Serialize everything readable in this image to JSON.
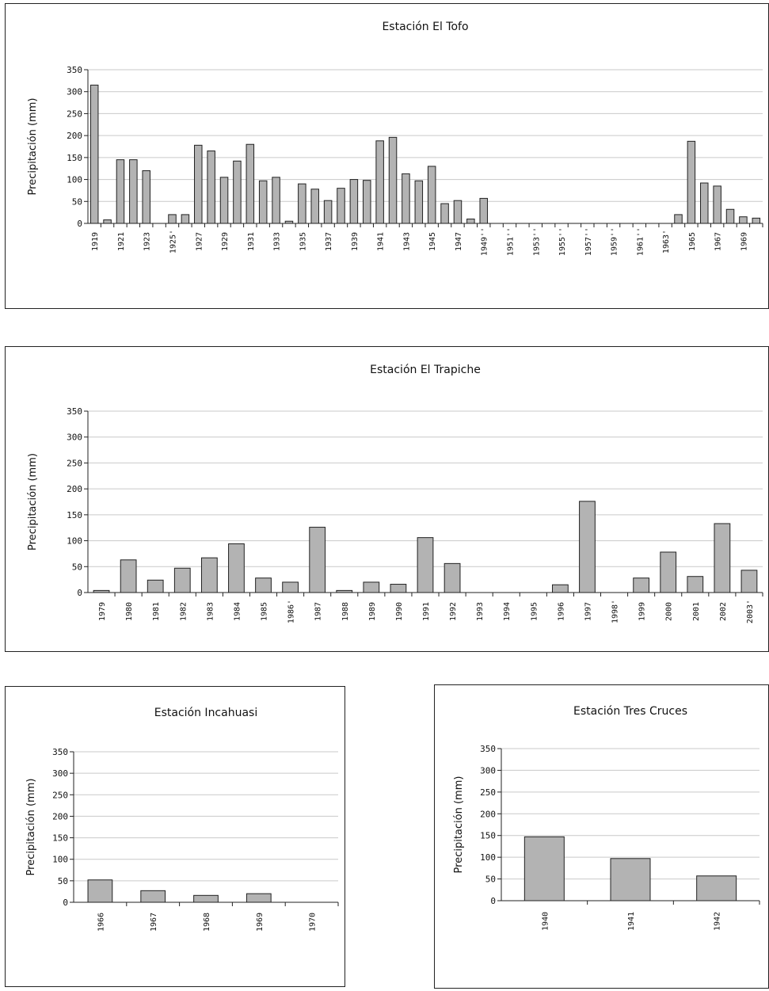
{
  "chart_data": [
    {
      "type": "bar",
      "title": "Estación El Tofo",
      "ylabel": "Precipitación (mm)",
      "ylim": [
        0,
        350
      ],
      "yticks": [
        0,
        50,
        100,
        150,
        200,
        250,
        300,
        350
      ],
      "grid": true,
      "categories": [
        "1919",
        "1920",
        "1921",
        "1922",
        "1923",
        "1924",
        "1925'",
        "1926",
        "1927",
        "1928",
        "1929",
        "1930",
        "1931",
        "1932",
        "1933",
        "1934",
        "1935",
        "1936",
        "1937",
        "1938",
        "1939",
        "1940",
        "1941",
        "1942",
        "1943",
        "1944",
        "1945",
        "1946",
        "1947",
        "1948",
        "1949''",
        "1950",
        "1951''",
        "1952",
        "1953''",
        "1954",
        "1955''",
        "1956",
        "1957''",
        "1958",
        "1959''",
        "1960",
        "1961''",
        "1962",
        "1963'",
        "1964",
        "1965",
        "1966",
        "1967",
        "1968",
        "1969",
        "1970"
      ],
      "tick_labels": [
        "1919",
        "",
        "1921",
        "",
        "1923",
        "",
        "1925'",
        "",
        "1927",
        "",
        "1929",
        "",
        "1931",
        "",
        "1933",
        "",
        "1935",
        "",
        "1937",
        "",
        "1939",
        "",
        "1941",
        "",
        "1943",
        "",
        "1945",
        "",
        "1947",
        "",
        "1949''",
        "",
        "1951''",
        "",
        "1953''",
        "",
        "1955''",
        "",
        "1957''",
        "",
        "1959''",
        "",
        "1961''",
        "",
        "1963'",
        "",
        "1965",
        "",
        "1967",
        "",
        "1969",
        ""
      ],
      "values": [
        315,
        8,
        145,
        145,
        120,
        0,
        20,
        20,
        178,
        165,
        105,
        142,
        180,
        97,
        105,
        5,
        90,
        78,
        52,
        80,
        100,
        98,
        188,
        196,
        113,
        97,
        130,
        45,
        52,
        10,
        57,
        0,
        0,
        0,
        0,
        0,
        0,
        0,
        0,
        0,
        0,
        0,
        0,
        0,
        0,
        20,
        187,
        92,
        85,
        32,
        15,
        12
      ]
    },
    {
      "type": "bar",
      "title": "Estación El Trapiche",
      "ylabel": "Precipitación (mm)",
      "ylim": [
        0,
        350
      ],
      "yticks": [
        0,
        50,
        100,
        150,
        200,
        250,
        300,
        350
      ],
      "grid": true,
      "categories": [
        "1979",
        "1980",
        "1981",
        "1982",
        "1983",
        "1984",
        "1985",
        "1986'",
        "1987",
        "1988",
        "1989",
        "1990",
        "1991",
        "1992",
        "1993",
        "1994",
        "1995",
        "1996",
        "1997",
        "1998'",
        "1999",
        "2000",
        "2001",
        "2002",
        "2003'"
      ],
      "tick_labels": [
        "1979",
        "1980",
        "1981",
        "1982",
        "1983",
        "1984",
        "1985",
        "1986'",
        "1987",
        "1988",
        "1989",
        "1990",
        "1991",
        "1992",
        "1993",
        "1994",
        "1995",
        "1996",
        "1997",
        "1998'",
        "1999",
        "2000",
        "2001",
        "2002",
        "2003'"
      ],
      "values": [
        4,
        63,
        24,
        47,
        67,
        94,
        28,
        20,
        126,
        4,
        20,
        16,
        106,
        56,
        0,
        0,
        0,
        15,
        176,
        0,
        28,
        78,
        31,
        133,
        43
      ]
    },
    {
      "type": "bar",
      "title": "Estación Incahuasi",
      "ylabel": "Precipitación (mm)",
      "ylim": [
        0,
        350
      ],
      "yticks": [
        0,
        50,
        100,
        150,
        200,
        250,
        300,
        350
      ],
      "grid": true,
      "categories": [
        "1966",
        "1967",
        "1968",
        "1969",
        "1970"
      ],
      "tick_labels": [
        "1966",
        "1967",
        "1968",
        "1969",
        "1970"
      ],
      "values": [
        52,
        27,
        16,
        20,
        0
      ]
    },
    {
      "type": "bar",
      "title": "Estación Tres Cruces",
      "ylabel": "Precipitación (mm)",
      "ylim": [
        0,
        350
      ],
      "yticks": [
        0,
        50,
        100,
        150,
        200,
        250,
        300,
        350
      ],
      "grid": true,
      "categories": [
        "1940",
        "1941",
        "1942"
      ],
      "tick_labels": [
        "1940",
        "1941",
        "1942"
      ],
      "values": [
        147,
        97,
        57
      ]
    }
  ],
  "colors": {
    "bar_fill": "#b3b3b3",
    "bar_stroke": "#222222",
    "grid": "#c9c9c9",
    "axis": "#222222"
  }
}
